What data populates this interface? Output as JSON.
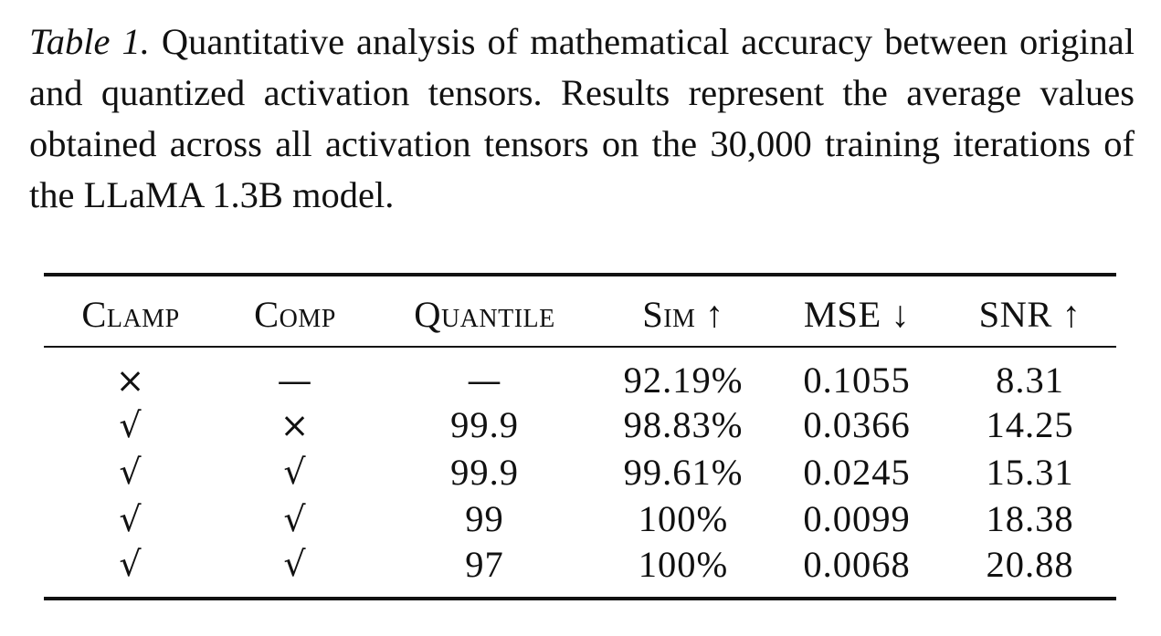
{
  "caption": {
    "label": "Table 1.",
    "text": "Quantitative analysis of mathematical accuracy between original and quantized activation tensors.  Results represent the average values obtained across all activation tensors on the 30,000 training iterations of the LLaMA 1.3B model."
  },
  "table": {
    "headers": [
      "Clamp",
      "Comp",
      "Quantile",
      "Sim ↑",
      "MSE ↓",
      "SNR ↑"
    ],
    "rows": [
      [
        "×",
        "—",
        "—",
        "92.19%",
        "0.1055",
        "8.31"
      ],
      [
        "√",
        "×",
        "99.9",
        "98.83%",
        "0.0366",
        "14.25"
      ],
      [
        "√",
        "√",
        "99.9",
        "99.61%",
        "0.0245",
        "15.31"
      ],
      [
        "√",
        "√",
        "99",
        "100%",
        "0.0099",
        "18.38"
      ],
      [
        "√",
        "√",
        "97",
        "100%",
        "0.0068",
        "20.88"
      ]
    ]
  }
}
